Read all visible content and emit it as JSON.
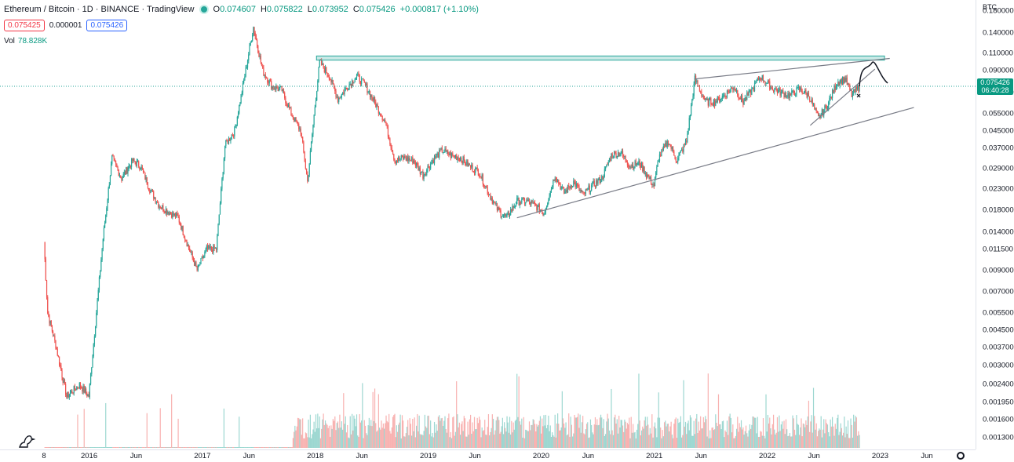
{
  "header": {
    "title": "Ethereum / Bitcoin · 1D · BINANCE · TradingView",
    "ohlc": [
      {
        "label": "O",
        "value": "0.074607"
      },
      {
        "label": "H",
        "value": "0.075822"
      },
      {
        "label": "L",
        "value": "0.073952"
      },
      {
        "label": "C",
        "value": "0.075426"
      },
      {
        "label": "",
        "value": "+0.000817 (+1.10%)"
      }
    ],
    "bid": "0.075425",
    "spread": "0.000001",
    "ask": "0.075426",
    "volume_label": "Vol",
    "volume_value": "78.828K"
  },
  "price_axis": {
    "currency": "BTC",
    "current_price": "0.075426",
    "countdown": "06:40:28"
  },
  "colors": {
    "up": "#26a69a",
    "down": "#ef5350",
    "resistance_zone": "#26a69a",
    "trendline": "#787b86"
  },
  "chart_data": {
    "type": "candlestick",
    "symbol": "ETHBTC",
    "interval": "1D",
    "scale": "log",
    "ylim": [
      0.0012,
      0.19
    ],
    "y_ticks": [
      "0.180000",
      "0.140000",
      "0.110000",
      "0.090000",
      "0.070000",
      "0.055000",
      "0.045000",
      "0.037000",
      "0.029000",
      "0.023000",
      "0.018000",
      "0.014000",
      "0.011500",
      "0.009000",
      "0.007000",
      "0.005500",
      "0.004500",
      "0.003700",
      "0.003000",
      "0.002400",
      "0.001950",
      "0.001600",
      "0.001300"
    ],
    "x_ticks": [
      "8",
      "2016",
      "Jun",
      "2017",
      "Jun",
      "2018",
      "Jun",
      "2019",
      "Jun",
      "2020",
      "Jun",
      "2021",
      "Jun",
      "2022",
      "Jun",
      "2023",
      "Jun"
    ],
    "price_path": [
      {
        "date": "2015-08-08",
        "close": 0.0125
      },
      {
        "date": "2015-08-20",
        "close": 0.0055
      },
      {
        "date": "2015-09-15",
        "close": 0.0038
      },
      {
        "date": "2015-10-20",
        "close": 0.0021
      },
      {
        "date": "2015-12-01",
        "close": 0.0024
      },
      {
        "date": "2015-12-31",
        "close": 0.0021
      },
      {
        "date": "2016-02-15",
        "close": 0.013
      },
      {
        "date": "2016-03-15",
        "close": 0.033
      },
      {
        "date": "2016-04-15",
        "close": 0.026
      },
      {
        "date": "2016-05-20",
        "close": 0.032
      },
      {
        "date": "2016-06-15",
        "close": 0.03
      },
      {
        "date": "2016-07-15",
        "close": 0.023
      },
      {
        "date": "2016-08-15",
        "close": 0.019
      },
      {
        "date": "2016-10-15",
        "close": 0.0165
      },
      {
        "date": "2016-11-15",
        "close": 0.012
      },
      {
        "date": "2016-12-15",
        "close": 0.009
      },
      {
        "date": "2017-01-15",
        "close": 0.0115
      },
      {
        "date": "2017-02-15",
        "close": 0.0115
      },
      {
        "date": "2017-03-15",
        "close": 0.038
      },
      {
        "date": "2017-04-15",
        "close": 0.045
      },
      {
        "date": "2017-05-15",
        "close": 0.08
      },
      {
        "date": "2017-06-15",
        "close": 0.15
      },
      {
        "date": "2017-07-15",
        "close": 0.09
      },
      {
        "date": "2017-08-15",
        "close": 0.075
      },
      {
        "date": "2017-09-15",
        "close": 0.072
      },
      {
        "date": "2017-10-15",
        "close": 0.055
      },
      {
        "date": "2017-11-15",
        "close": 0.045
      },
      {
        "date": "2017-12-07",
        "close": 0.025
      },
      {
        "date": "2017-12-31",
        "close": 0.06
      },
      {
        "date": "2018-01-15",
        "close": 0.1
      },
      {
        "date": "2018-02-15",
        "close": 0.085
      },
      {
        "date": "2018-03-15",
        "close": 0.065
      },
      {
        "date": "2018-04-15",
        "close": 0.075
      },
      {
        "date": "2018-05-15",
        "close": 0.085
      },
      {
        "date": "2018-06-15",
        "close": 0.075
      },
      {
        "date": "2018-08-15",
        "close": 0.05
      },
      {
        "date": "2018-09-15",
        "close": 0.032
      },
      {
        "date": "2018-10-15",
        "close": 0.033
      },
      {
        "date": "2018-11-15",
        "close": 0.032
      },
      {
        "date": "2018-12-15",
        "close": 0.027
      },
      {
        "date": "2019-01-15",
        "close": 0.032
      },
      {
        "date": "2019-02-15",
        "close": 0.036
      },
      {
        "date": "2019-03-15",
        "close": 0.034
      },
      {
        "date": "2019-04-15",
        "close": 0.033
      },
      {
        "date": "2019-05-15",
        "close": 0.03
      },
      {
        "date": "2019-06-15",
        "close": 0.028
      },
      {
        "date": "2019-07-15",
        "close": 0.022
      },
      {
        "date": "2019-08-15",
        "close": 0.018
      },
      {
        "date": "2019-09-10",
        "close": 0.0165
      },
      {
        "date": "2019-10-15",
        "close": 0.02
      },
      {
        "date": "2019-11-15",
        "close": 0.02
      },
      {
        "date": "2019-12-15",
        "close": 0.019
      },
      {
        "date": "2020-01-10",
        "close": 0.0175
      },
      {
        "date": "2020-02-15",
        "close": 0.027
      },
      {
        "date": "2020-03-15",
        "close": 0.022
      },
      {
        "date": "2020-04-15",
        "close": 0.025
      },
      {
        "date": "2020-05-15",
        "close": 0.0215
      },
      {
        "date": "2020-06-15",
        "close": 0.024
      },
      {
        "date": "2020-07-15",
        "close": 0.026
      },
      {
        "date": "2020-08-15",
        "close": 0.034
      },
      {
        "date": "2020-09-15",
        "close": 0.035
      },
      {
        "date": "2020-10-15",
        "close": 0.03
      },
      {
        "date": "2020-11-15",
        "close": 0.031
      },
      {
        "date": "2020-12-15",
        "close": 0.026
      },
      {
        "date": "2020-12-31",
        "close": 0.024
      },
      {
        "date": "2021-01-15",
        "close": 0.033
      },
      {
        "date": "2021-02-15",
        "close": 0.04
      },
      {
        "date": "2021-03-15",
        "close": 0.032
      },
      {
        "date": "2021-04-15",
        "close": 0.04
      },
      {
        "date": "2021-05-12",
        "close": 0.082
      },
      {
        "date": "2021-06-15",
        "close": 0.063
      },
      {
        "date": "2021-07-15",
        "close": 0.063
      },
      {
        "date": "2021-08-15",
        "close": 0.068
      },
      {
        "date": "2021-09-15",
        "close": 0.075
      },
      {
        "date": "2021-10-15",
        "close": 0.063
      },
      {
        "date": "2021-11-15",
        "close": 0.073
      },
      {
        "date": "2021-12-10",
        "close": 0.085
      },
      {
        "date": "2022-01-15",
        "close": 0.074
      },
      {
        "date": "2022-02-15",
        "close": 0.07
      },
      {
        "date": "2022-03-15",
        "close": 0.068
      },
      {
        "date": "2022-04-15",
        "close": 0.073
      },
      {
        "date": "2022-05-15",
        "close": 0.068
      },
      {
        "date": "2022-06-15",
        "close": 0.052
      },
      {
        "date": "2022-07-15",
        "close": 0.061
      },
      {
        "date": "2022-08-15",
        "close": 0.079
      },
      {
        "date": "2022-09-10",
        "close": 0.082
      },
      {
        "date": "2022-10-01",
        "close": 0.068
      },
      {
        "date": "2022-10-26",
        "close": 0.075426
      }
    ],
    "volume": {
      "last_k": 78.828
    },
    "drawings": {
      "resistance_zone": {
        "from": "2018-01-05",
        "to": "2023-01-15",
        "price_low": 0.102,
        "price_high": 0.107
      },
      "trendlines": [
        {
          "from": {
            "date": "2019-10-15",
            "price": 0.0165
          },
          "to": {
            "date": "2023-04-20",
            "price": 0.059
          }
        },
        {
          "from": {
            "date": "2021-05-10",
            "price": 0.082
          },
          "to": {
            "date": "2023-02-01",
            "price": 0.104
          }
        },
        {
          "from": {
            "date": "2022-05-20",
            "price": 0.048
          },
          "to": {
            "date": "2022-12-15",
            "price": 0.092
          }
        }
      ]
    }
  }
}
